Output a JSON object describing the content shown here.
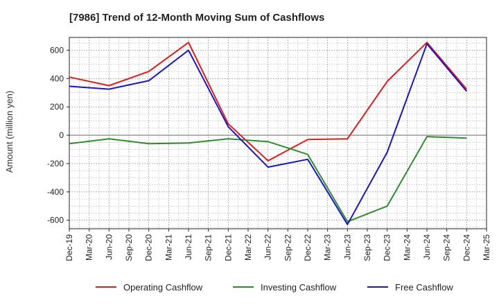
{
  "chart_data": {
    "type": "line",
    "title": "[7986]  Trend of 12-Month Moving Sum of Cashflows",
    "ylabel": "Amount (million yen)",
    "xlabel": "",
    "categories": [
      "Dec-19",
      "Mar-20",
      "Jun-20",
      "Sep-20",
      "Dec-20",
      "Mar-21",
      "Jun-21",
      "Sep-21",
      "Dec-21",
      "Mar-22",
      "Jun-22",
      "Sep-22",
      "Dec-22",
      "Mar-23",
      "Jun-23",
      "Sep-23",
      "Dec-23",
      "Mar-24",
      "Jun-24",
      "Sep-24",
      "Dec-24",
      "Mar-25"
    ],
    "ylim": [
      -660,
      690
    ],
    "yticks": [
      -600,
      -400,
      -200,
      0,
      200,
      400,
      600
    ],
    "grid": true,
    "legend_position": "bottom",
    "series": [
      {
        "name": "Operating Cashflow",
        "color": "#e31a1c",
        "points": [
          [
            "Dec-19",
            410
          ],
          [
            "Jun-20",
            350
          ],
          [
            "Dec-20",
            450
          ],
          [
            "Jun-21",
            655
          ],
          [
            "Dec-21",
            80
          ],
          [
            "Jun-22",
            -180
          ],
          [
            "Dec-22",
            -30
          ],
          [
            "Jun-23",
            -25
          ],
          [
            "Dec-23",
            380
          ],
          [
            "Jun-24",
            655
          ],
          [
            "Dec-24",
            325
          ]
        ]
      },
      {
        "name": "Investing Cashflow",
        "color": "#2e8b2e",
        "points": [
          [
            "Dec-19",
            -60
          ],
          [
            "Jun-20",
            -25
          ],
          [
            "Dec-20",
            -60
          ],
          [
            "Jun-21",
            -55
          ],
          [
            "Dec-21",
            -25
          ],
          [
            "Jun-22",
            -45
          ],
          [
            "Dec-22",
            -135
          ],
          [
            "Jun-23",
            -610
          ],
          [
            "Dec-23",
            -500
          ],
          [
            "Jun-24",
            -10
          ],
          [
            "Dec-24",
            -20
          ]
        ]
      },
      {
        "name": "Free Cashflow",
        "color": "#1515cc",
        "points": [
          [
            "Dec-19",
            345
          ],
          [
            "Jun-20",
            325
          ],
          [
            "Dec-20",
            385
          ],
          [
            "Jun-21",
            600
          ],
          [
            "Dec-21",
            60
          ],
          [
            "Jun-22",
            -225
          ],
          [
            "Dec-22",
            -170
          ],
          [
            "Jun-23",
            -630
          ],
          [
            "Dec-23",
            -120
          ],
          [
            "Jun-24",
            645
          ],
          [
            "Dec-24",
            310
          ]
        ]
      }
    ]
  }
}
